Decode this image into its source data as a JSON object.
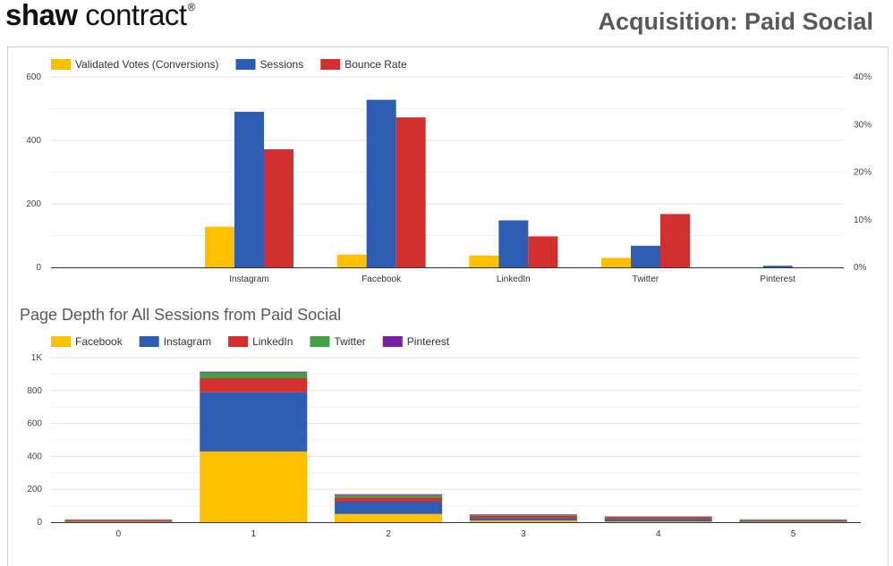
{
  "header": {
    "logo_bold": "shaw",
    "logo_light": " contract",
    "logo_mark": "®",
    "title": "Acquisition: Paid Social"
  },
  "chart_data": [
    {
      "type": "bar",
      "title": "",
      "categories": [
        "",
        "Instagram",
        "Facebook",
        "LinkedIn",
        "Twitter",
        "Pinterest"
      ],
      "series": [
        {
          "name": "Validated Votes (Conversions)",
          "color": "#FFC000",
          "axis": "left",
          "values": [
            0,
            128,
            40,
            37,
            30,
            0
          ]
        },
        {
          "name": "Sessions",
          "color": "#2E5EB3",
          "axis": "left",
          "values": [
            0,
            490,
            528,
            148,
            68,
            5
          ]
        },
        {
          "name": "Bounce Rate",
          "color": "#D32F2F",
          "axis": "right",
          "values": [
            0,
            0.248,
            0.315,
            0.065,
            0.112,
            0
          ]
        }
      ],
      "y_left": {
        "min": 0,
        "max": 600,
        "ticks": [
          0,
          200,
          400,
          600
        ],
        "tick_labels": [
          "0",
          "200",
          "400",
          "600"
        ]
      },
      "y_right": {
        "min": 0,
        "max": 0.4,
        "ticks": [
          0,
          0.1,
          0.2,
          0.3,
          0.4
        ],
        "tick_labels": [
          "0%",
          "10%",
          "20%",
          "30%",
          "40%"
        ]
      },
      "grid": true,
      "legend": "top-left"
    },
    {
      "type": "bar",
      "stacked": true,
      "title": "Page Depth for All Sessions from Paid Social",
      "categories": [
        "0",
        "1",
        "2",
        "3",
        "4",
        "5"
      ],
      "series": [
        {
          "name": "Facebook",
          "color": "#FFC000",
          "values": [
            3,
            430,
            50,
            10,
            5,
            3
          ]
        },
        {
          "name": "Instagram",
          "color": "#2E5EB3",
          "values": [
            3,
            360,
            75,
            15,
            15,
            5
          ]
        },
        {
          "name": "LinkedIn",
          "color": "#D32F2F",
          "values": [
            5,
            85,
            25,
            15,
            10,
            3
          ]
        },
        {
          "name": "Twitter",
          "color": "#43A047",
          "values": [
            4,
            35,
            15,
            5,
            3,
            4
          ]
        },
        {
          "name": "Pinterest",
          "color": "#7B1FA2",
          "values": [
            2,
            5,
            5,
            3,
            2,
            2
          ]
        }
      ],
      "y": {
        "min": 0,
        "max": 1000,
        "ticks": [
          0,
          200,
          400,
          600,
          800,
          1000
        ],
        "tick_labels": [
          "0",
          "200",
          "400",
          "600",
          "800",
          "1K"
        ]
      },
      "grid": true,
      "legend": "top-left"
    }
  ]
}
